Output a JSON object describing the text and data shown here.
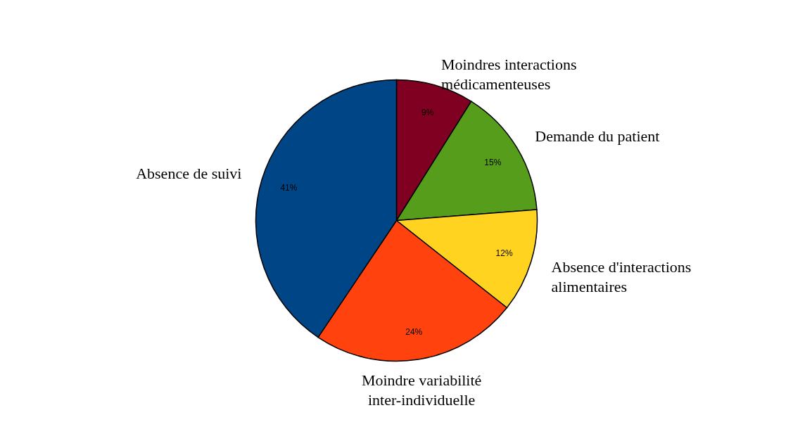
{
  "chart_data": {
    "type": "pie",
    "categories": [
      "Moindres interactions médicamenteuses",
      "Demande du patient",
      "Absence d'interactions alimentaires",
      "Moindre variabilité inter-individuelle",
      "Absence de suivi"
    ],
    "values": [
      9,
      15,
      12,
      24,
      41
    ],
    "colors": [
      "#7f0020",
      "#579d1c",
      "#ffd320",
      "#ff420e",
      "#004586"
    ],
    "value_labels": [
      "9%",
      "15%",
      "12%",
      "24%",
      "41%"
    ]
  }
}
